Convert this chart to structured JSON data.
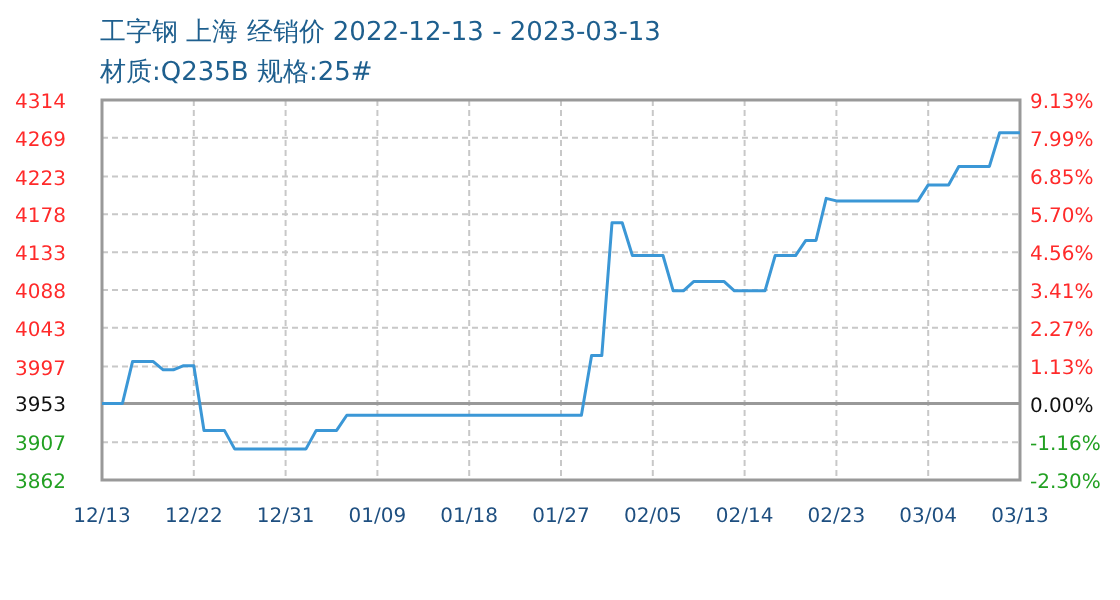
{
  "chart_data": {
    "type": "line",
    "title": "工字钢 上海 经销价 2022-12-13 - 2023-03-13",
    "subtitle": "材质:Q235B 规格:25#",
    "x": [
      "2022-12-13",
      "2022-12-15",
      "2022-12-16",
      "2022-12-18",
      "2022-12-19",
      "2022-12-20",
      "2022-12-21",
      "2022-12-22",
      "2022-12-23",
      "2022-12-25",
      "2022-12-26",
      "2023-01-02",
      "2023-01-03",
      "2023-01-05",
      "2023-01-06",
      "2023-01-29",
      "2023-01-30",
      "2023-01-31",
      "2023-02-01",
      "2023-02-02",
      "2023-02-03",
      "2023-02-06",
      "2023-02-07",
      "2023-02-08",
      "2023-02-09",
      "2023-02-12",
      "2023-02-13",
      "2023-02-16",
      "2023-02-17",
      "2023-02-19",
      "2023-02-20",
      "2023-02-21",
      "2023-02-22",
      "2023-02-23",
      "2023-03-03",
      "2023-03-04",
      "2023-03-06",
      "2023-03-07",
      "2023-03-10",
      "2023-03-11",
      "2023-03-13"
    ],
    "series": [
      {
        "color": "#3b97d6",
        "values": [
          3953,
          3953,
          4003,
          4003,
          3993,
          3993,
          3998,
          3998,
          3921,
          3921,
          3899,
          3899,
          3921,
          3921,
          3939,
          3939,
          4010,
          4010,
          4168,
          4168,
          4129,
          4129,
          4087,
          4087,
          4098,
          4098,
          4087,
          4087,
          4129,
          4129,
          4147,
          4147,
          4197,
          4194,
          4194,
          4213,
          4213,
          4235,
          4235,
          4275,
          4275
        ]
      }
    ],
    "xlim": [
      "2022-12-13",
      "2023-03-13"
    ],
    "xticks": [
      {
        "value": "2022-12-13",
        "label": "12/13"
      },
      {
        "value": "2022-12-22",
        "label": "12/22"
      },
      {
        "value": "2022-12-31",
        "label": "12/31"
      },
      {
        "value": "2023-01-09",
        "label": "01/09"
      },
      {
        "value": "2023-01-18",
        "label": "01/18"
      },
      {
        "value": "2023-01-27",
        "label": "01/27"
      },
      {
        "value": "2023-02-05",
        "label": "02/05"
      },
      {
        "value": "2023-02-14",
        "label": "02/14"
      },
      {
        "value": "2023-02-23",
        "label": "02/23"
      },
      {
        "value": "2023-03-04",
        "label": "03/04"
      },
      {
        "value": "2023-03-13",
        "label": "03/13"
      }
    ],
    "ylim": [
      3862,
      4314
    ],
    "yticks": [
      3862,
      3907,
      3953,
      3997,
      4043,
      4088,
      4133,
      4178,
      4223,
      4269,
      4314
    ],
    "y2lim": [
      -2.3,
      9.13
    ],
    "y2ticks": [
      {
        "value": -2.3,
        "label": "-2.30%"
      },
      {
        "value": -1.16,
        "label": "-1.16%"
      },
      {
        "value": 0,
        "label": "0.00%"
      },
      {
        "value": 1.13,
        "label": "1.13%"
      },
      {
        "value": 2.27,
        "label": "2.27%"
      },
      {
        "value": 3.41,
        "label": "3.41%"
      },
      {
        "value": 4.56,
        "label": "4.56%"
      },
      {
        "value": 5.7,
        "label": "5.70%"
      },
      {
        "value": 6.85,
        "label": "6.85%"
      },
      {
        "value": 7.99,
        "label": "7.99%"
      },
      {
        "value": 9.13,
        "label": "9.13%"
      }
    ],
    "ref_lines": [
      {
        "axis": "y",
        "value": 3953,
        "color": "#999999"
      }
    ],
    "grid": true,
    "marker": "none",
    "line_style": "solid"
  }
}
